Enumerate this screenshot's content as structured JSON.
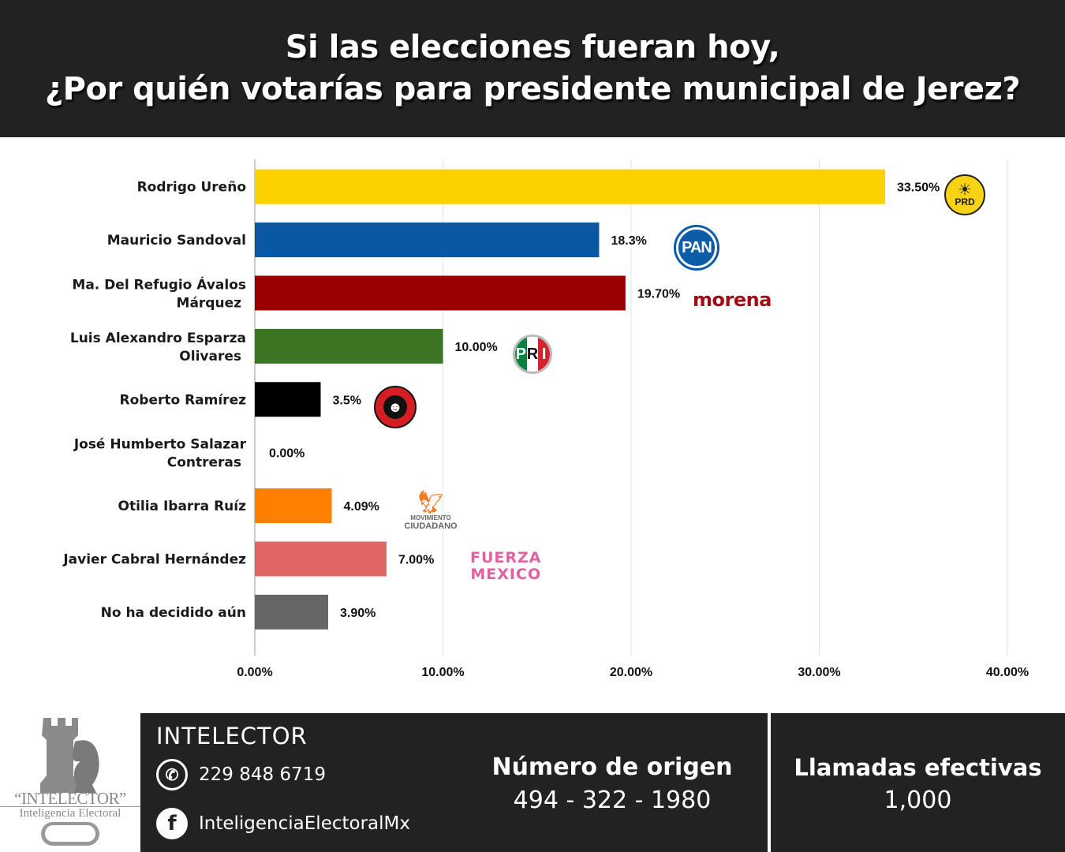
{
  "header": {
    "title_line1": "Si las elecciones fueran hoy,",
    "title_line2": "¿Por quién votarías para presidente municipal de Jerez?"
  },
  "chart_data": {
    "type": "bar",
    "orientation": "horizontal",
    "title": "Si las elecciones fueran hoy, ¿Por quién votarías para presidente municipal de Jerez?",
    "xlabel": "",
    "ylabel": "",
    "xlim": [
      0,
      40
    ],
    "x_ticks": [
      "0.00%",
      "10.00%",
      "20.00%",
      "30.00%",
      "40.00%"
    ],
    "grid": true,
    "categories": [
      "Rodrigo Ureño",
      "Mauricio Sandoval",
      "Ma. Del Refugio Ávalos Márquez",
      "Luis Alexandro Esparza Olivares",
      "Roberto Ramírez",
      "José Humberto Salazar Contreras",
      "Otilia Ibarra Ruíz",
      "Javier Cabral Hernández",
      "No ha decidido aún"
    ],
    "category_lines": [
      [
        "Rodrigo Ureño"
      ],
      [
        "Mauricio Sandoval"
      ],
      [
        "Ma. Del Refugio Ávalos",
        "Márquez"
      ],
      [
        "Luis Alexandro Esparza",
        "Olivares"
      ],
      [
        "Roberto Ramírez"
      ],
      [
        "José Humberto Salazar",
        "Contreras"
      ],
      [
        "Otilia Ibarra Ruíz"
      ],
      [
        "Javier Cabral Hernández"
      ],
      [
        "No ha decidido aún"
      ]
    ],
    "values": [
      33.5,
      18.3,
      19.7,
      10.0,
      3.5,
      0.0,
      4.09,
      7.0,
      3.9
    ],
    "value_labels": [
      "33.50%",
      "18.3%",
      "19.70%",
      "10.00%",
      "3.5%",
      "0.00%",
      "4.09%",
      "7.00%",
      "3.90%"
    ],
    "colors": [
      "#fdd000",
      "#0a58a3",
      "#990000",
      "#3b7722",
      "#000000",
      "#ffffff",
      "#ff8000",
      "#e06666",
      "#666666"
    ],
    "parties": [
      "PRD",
      "PAN",
      "morena",
      "PRI",
      "Revolución Popular Zacatecas",
      "",
      "Movimiento Ciudadano",
      "Fuerza México",
      ""
    ]
  },
  "logos": {
    "prd": "PRD",
    "pan": "PAN",
    "morena": "morena",
    "pri": [
      "P",
      "R",
      "I"
    ],
    "rp_text": "REVOLUCIÓN POPULAR",
    "mc_line1": "MOVIMIENTO",
    "mc_line2": "CIUDADANO",
    "fm_line1": "FUERZA",
    "fm_line2": "MEXICO"
  },
  "footer": {
    "logo_title": "“INTELECTOR”",
    "logo_subtitle": "Inteligencia Electoral",
    "brand": "INTELECTOR",
    "whatsapp": "229 848 6719",
    "facebook": "InteligenciaElectoralMx",
    "origin_label": "Número de origen",
    "origin_value": "494 - 322 - 1980",
    "calls_label": "Llamadas efectivas",
    "calls_value": "1,000"
  }
}
